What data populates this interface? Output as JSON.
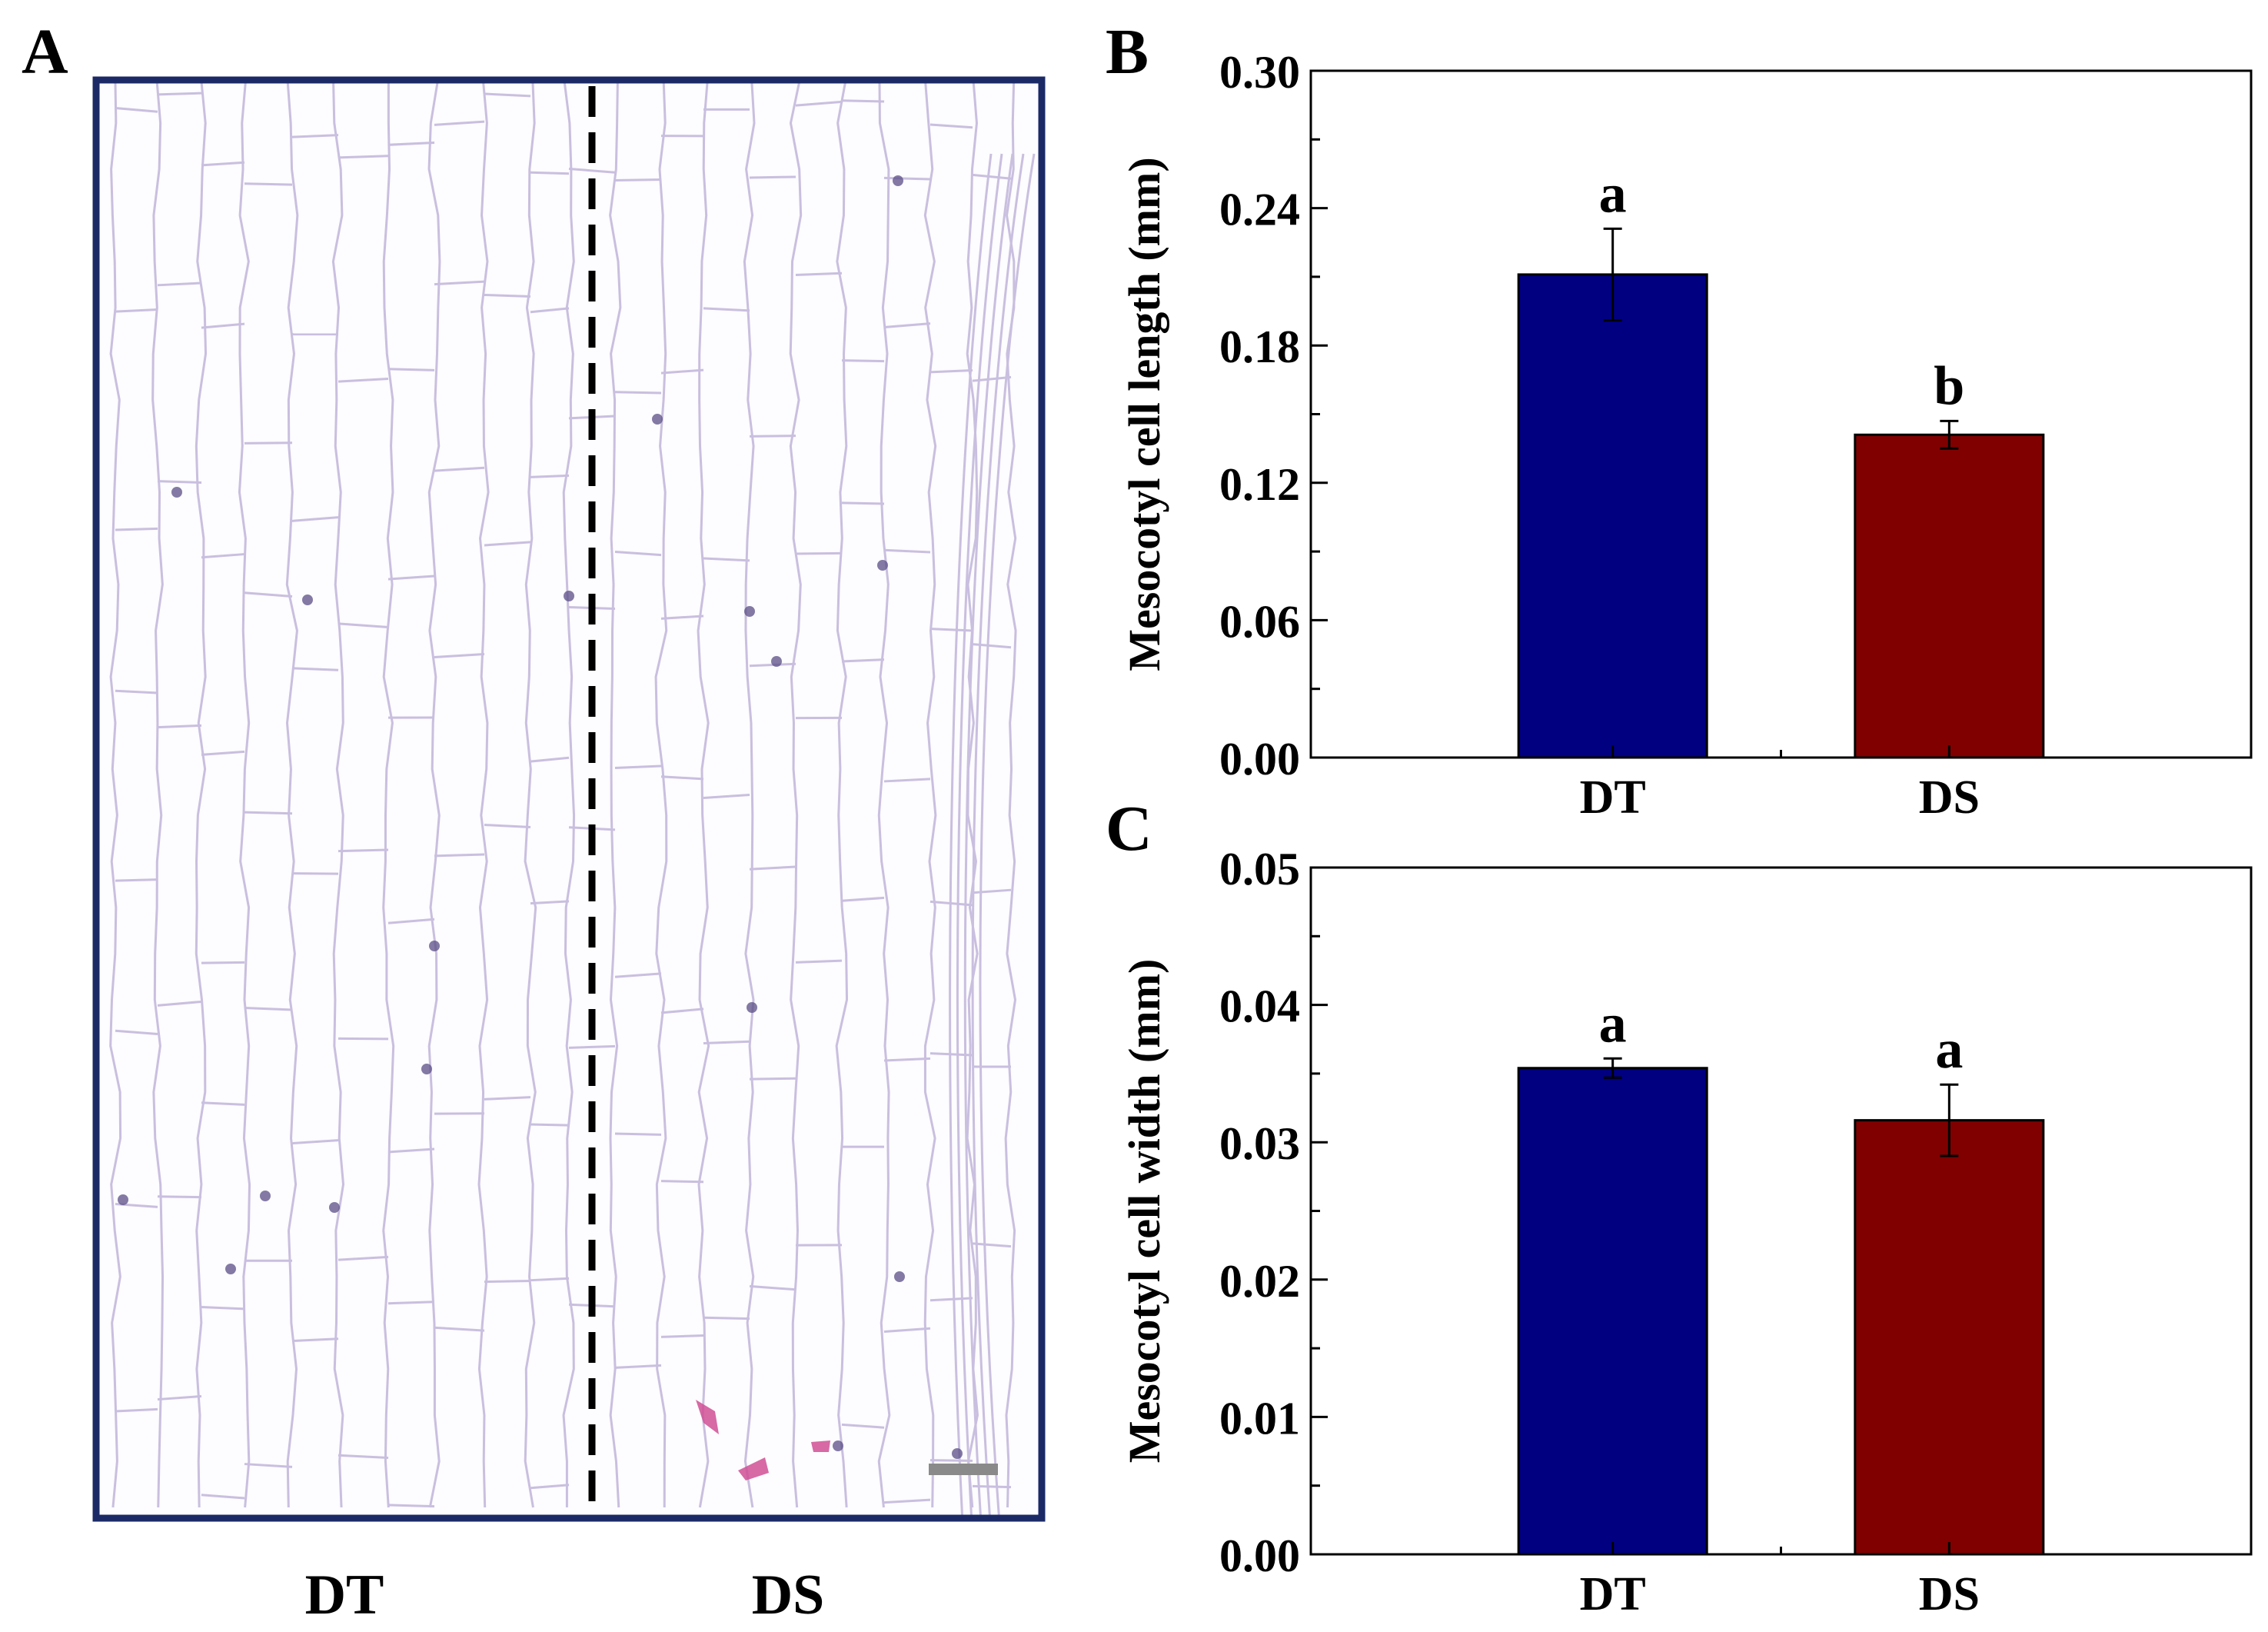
{
  "colors": {
    "dt_bar": "#000080",
    "ds_bar": "#800000",
    "frame": "#1b2a66",
    "cell_wall": "#c9bfdf",
    "nucleus": "#5a4d86",
    "stain": "#d04f95",
    "scale_bar": "#8a8a8a"
  },
  "panel_a": {
    "letter": "A",
    "labels": [
      "DT",
      "DS"
    ],
    "image_description_icon": "micrograph-icon"
  },
  "chart_data": [
    {
      "panel": "B",
      "type": "bar",
      "categories": [
        "DT",
        "DS"
      ],
      "values": [
        0.211,
        0.141
      ],
      "errors": [
        0.02,
        0.006
      ],
      "significance": [
        "a",
        "b"
      ],
      "ylabel": "Mesocotyl cell length (mm)",
      "xlabel": "",
      "ylim": [
        0,
        0.3
      ],
      "yticks": [
        "0.00",
        "0.06",
        "0.12",
        "0.18",
        "0.24",
        "0.30"
      ],
      "grid": false
    },
    {
      "panel": "C",
      "type": "bar",
      "categories": [
        "DT",
        "DS"
      ],
      "values": [
        0.0354,
        0.0316
      ],
      "errors": [
        0.0007,
        0.0026
      ],
      "significance": [
        "a",
        "a"
      ],
      "ylabel": "Mesocotyl cell width (mm)",
      "xlabel": "",
      "ylim": [
        0,
        0.05
      ],
      "yticks": [
        "0.00",
        "0.01",
        "0.02",
        "0.03",
        "0.04",
        "0.05"
      ],
      "grid": false
    }
  ]
}
